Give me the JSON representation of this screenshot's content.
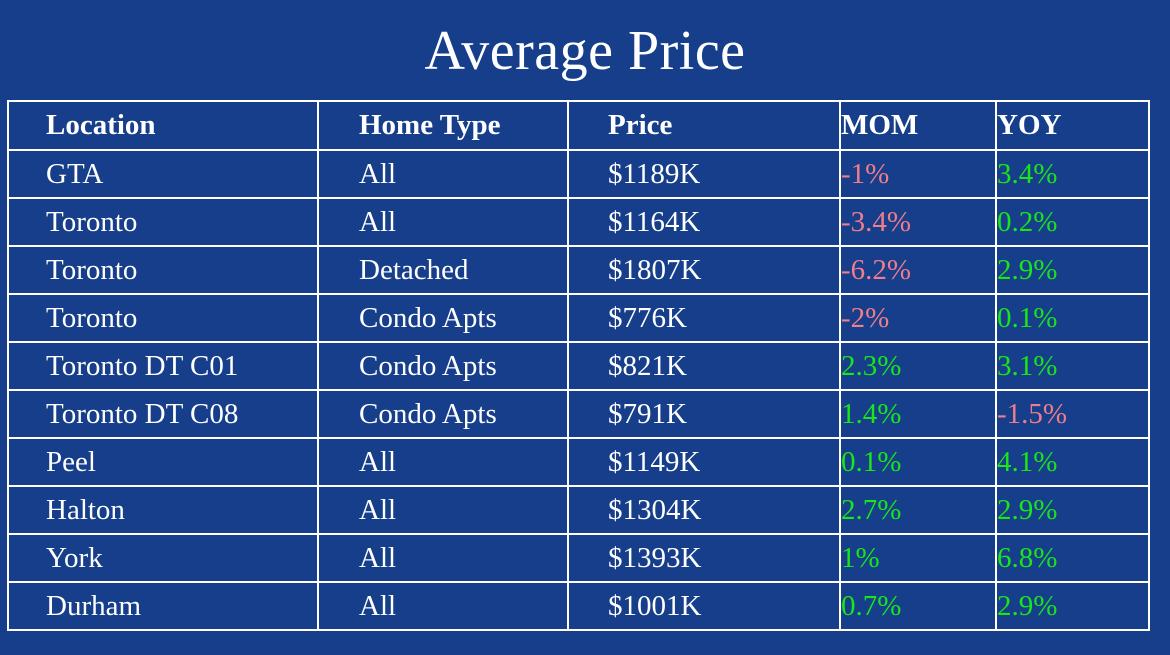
{
  "title": "Average Price",
  "colors": {
    "background": "#163e8a",
    "text": "#ffffff",
    "negative": "#f07d8a",
    "positive": "#19e619"
  },
  "table": {
    "headers": [
      "Location",
      "Home Type",
      "Price",
      "MOM",
      "YOY"
    ],
    "rows": [
      {
        "location": "GTA",
        "home_type": "All",
        "price": "$1189K",
        "mom": "-1%",
        "yoy": "3.4%"
      },
      {
        "location": "Toronto",
        "home_type": "All",
        "price": "$1164K",
        "mom": "-3.4%",
        "yoy": "0.2%"
      },
      {
        "location": "Toronto",
        "home_type": "Detached",
        "price": "$1807K",
        "mom": "-6.2%",
        "yoy": "2.9%"
      },
      {
        "location": "Toronto",
        "home_type": "Condo Apts",
        "price": "$776K",
        "mom": "-2%",
        "yoy": "0.1%"
      },
      {
        "location": "Toronto DT C01",
        "home_type": "Condo Apts",
        "price": "$821K",
        "mom": "2.3%",
        "yoy": "3.1%"
      },
      {
        "location": "Toronto DT C08",
        "home_type": "Condo Apts",
        "price": "$791K",
        "mom": "1.4%",
        "yoy": "-1.5%"
      },
      {
        "location": "Peel",
        "home_type": "All",
        "price": "$1149K",
        "mom": "0.1%",
        "yoy": "4.1%"
      },
      {
        "location": "Halton",
        "home_type": "All",
        "price": "$1304K",
        "mom": "2.7%",
        "yoy": "2.9%"
      },
      {
        "location": "York",
        "home_type": "All",
        "price": "$1393K",
        "mom": "1%",
        "yoy": "6.8%"
      },
      {
        "location": "Durham",
        "home_type": "All",
        "price": "$1001K",
        "mom": "0.7%",
        "yoy": "2.9%"
      }
    ]
  }
}
